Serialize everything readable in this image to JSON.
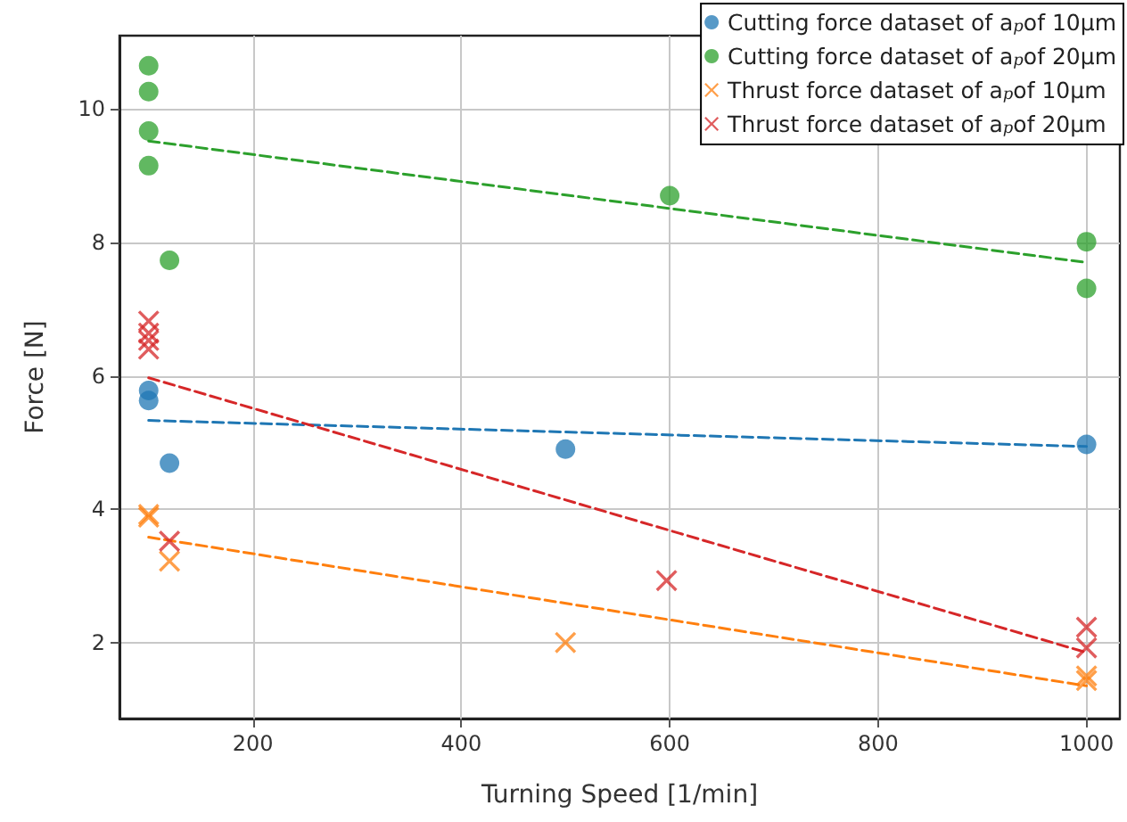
{
  "chart_data": {
    "type": "scatter",
    "xlabel": "Turning Speed [1/min]",
    "ylabel": "Force [N]",
    "xlim": [
      72,
      1032
    ],
    "xticks": [
      200,
      400,
      600,
      800,
      1000
    ],
    "ylim": [
      0.86,
      11.1
    ],
    "yticks": [
      2,
      4,
      6,
      8,
      10
    ],
    "grid": true,
    "legend": "top right",
    "series": [
      {
        "name": "Cutting force dataset of a$_{p}$of 10μm",
        "color": "#1f77b4",
        "marker": "circle",
        "x": [
          100,
          100,
          120,
          500,
          1000
        ],
        "values": [
          5.78,
          5.63,
          4.69,
          4.9,
          4.97
        ]
      },
      {
        "name": "Cutting force dataset of a$_{p}$of 20μm",
        "color": "#2ca02c",
        "marker": "circle",
        "x": [
          100,
          100,
          100,
          100,
          120,
          600,
          1000,
          1000
        ],
        "values": [
          10.65,
          10.26,
          9.67,
          9.15,
          7.73,
          8.7,
          8.01,
          7.31
        ]
      },
      {
        "name": "Thrust force dataset of a$_{p}$of 10μm",
        "color": "#ff7f0e",
        "marker": "cross",
        "x": [
          100,
          100,
          120,
          500,
          1000,
          1000
        ],
        "values": [
          3.92,
          3.88,
          3.22,
          2.0,
          1.5,
          1.43
        ]
      },
      {
        "name": "Thrust force dataset of a$_{p}$of 20μm",
        "color": "#d62728",
        "marker": "cross",
        "x": [
          100,
          100,
          100,
          100,
          120,
          597,
          1000,
          1000
        ],
        "values": [
          6.82,
          6.64,
          6.53,
          6.4,
          3.52,
          2.93,
          2.23,
          1.92
        ]
      },
      {
        "type": "line",
        "color": "#1f77b4",
        "line_style": "dashed",
        "marker": "none",
        "x": [
          100,
          1000
        ],
        "values": [
          5.33,
          4.94
        ]
      },
      {
        "type": "line",
        "color": "#2ca02c",
        "line_style": "dashed",
        "marker": "none",
        "x": [
          100,
          1000
        ],
        "values": [
          9.52,
          7.7
        ]
      },
      {
        "type": "line",
        "color": "#ff7f0e",
        "line_style": "dashed",
        "marker": "none",
        "x": [
          100,
          1000
        ],
        "values": [
          3.58,
          1.35
        ]
      },
      {
        "type": "line",
        "color": "#d62728",
        "line_style": "dashed",
        "marker": "none",
        "x": [
          100,
          1000
        ],
        "values": [
          5.97,
          1.85
        ]
      }
    ]
  }
}
